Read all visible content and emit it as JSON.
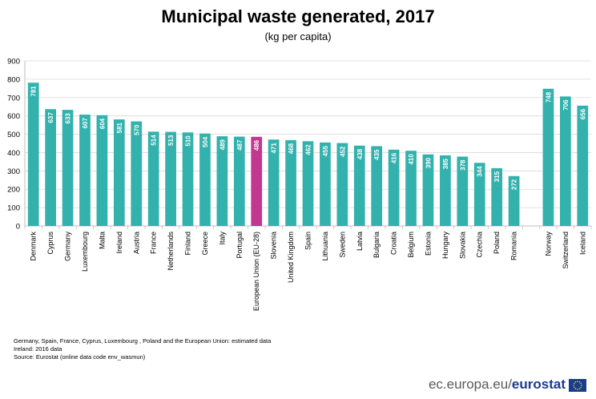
{
  "title": "Municipal waste generated, 2017",
  "subtitle": "(kg per capita)",
  "notes": [
    "Germany, Spain,  France, Cyprus, Luxembourg , Poland and the European Union: estimated data",
    "Ireland: 2016 data",
    "Source:  Eurostat (online data code env_wasmun)"
  ],
  "footer": {
    "domain": "ec.europa.eu/",
    "brand": "eurostat"
  },
  "colors": {
    "bar": "#33b2ad",
    "highlight": "#c2378f",
    "axis": "#bfbfbf",
    "grid": "#d9d9d9",
    "label": "#ffffff"
  },
  "chart_data": {
    "type": "bar",
    "title": "Municipal waste generated, 2017",
    "subtitle": "(kg per capita)",
    "xlabel": "",
    "ylabel": "",
    "ylim": [
      0,
      900
    ],
    "yticks": [
      0,
      100,
      200,
      300,
      400,
      500,
      600,
      700,
      800,
      900
    ],
    "grid": true,
    "legend": "none",
    "categories": [
      "Denmark",
      "Cyprus",
      "Germany",
      "Luxembourg",
      "Malta",
      "Ireland",
      "Austria",
      "France",
      "Netherlands",
      "Finland",
      "Greece",
      "Italy",
      "Portugal",
      "European Union (EU-28)",
      "Slovenia",
      "United Kingdom",
      "Spain",
      "Lithuania",
      "Sweden",
      "Latvia",
      "Bulgaria",
      "Croatia",
      "Belgium",
      "Estonia",
      "Hungary",
      "Slovakia",
      "Czechia",
      "Poland",
      "Romania",
      "",
      "Norway",
      "Switzerland",
      "Iceland"
    ],
    "values": [
      781,
      637,
      633,
      607,
      604,
      581,
      570,
      514,
      513,
      510,
      504,
      489,
      487,
      486,
      471,
      468,
      462,
      455,
      452,
      438,
      435,
      416,
      410,
      390,
      385,
      378,
      344,
      315,
      272,
      null,
      748,
      706,
      656
    ],
    "highlight": [
      "European Union (EU-28)"
    ]
  }
}
